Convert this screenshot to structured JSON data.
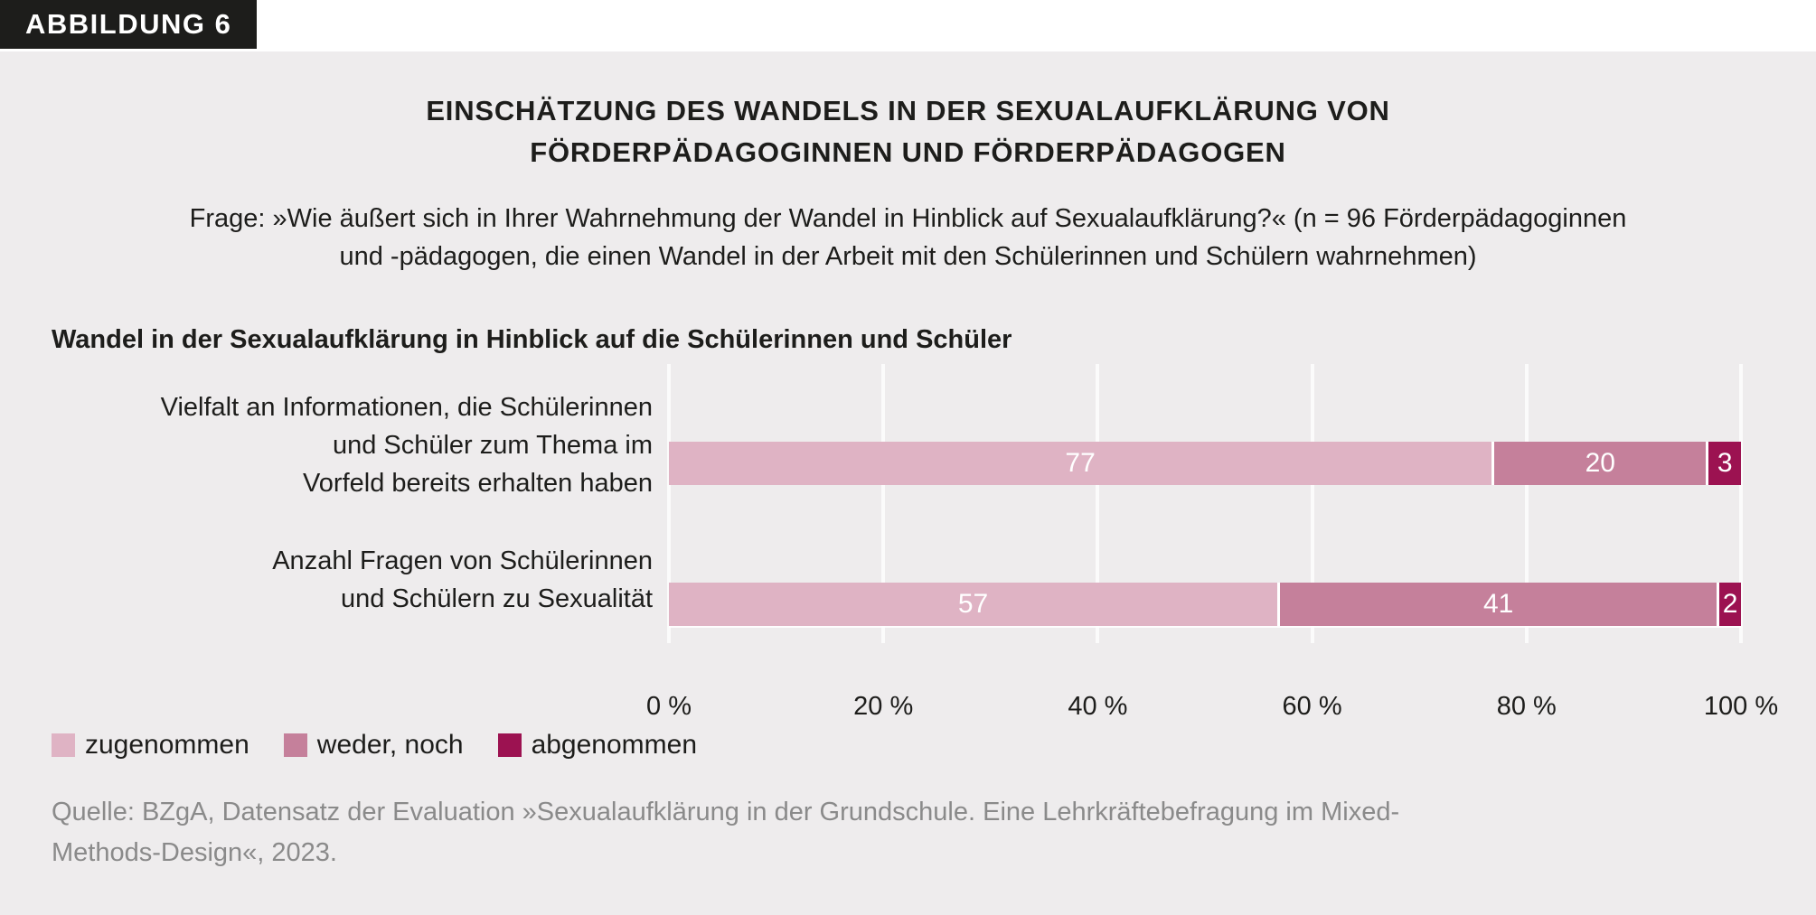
{
  "figure_label": "ABBILDUNG 6",
  "title": "EINSCHÄTZUNG DES WANDELS IN DER SEXUALAUFKLÄRUNG VON\nFÖRDERPÄDAGOGINNEN UND FÖRDERPÄDAGOGEN",
  "question": "Frage: »Wie äußert sich in Ihrer Wahrnehmung der Wandel in Hinblick auf Sexualaufklärung?« (n = 96 Förderpädagoginnen\nund -pädagogen, die einen Wandel in der Arbeit mit den Schülerinnen und Schülern wahrnehmen)",
  "section_heading": "Wandel in der Sexualaufklärung in Hinblick auf die Schülerinnen und Schüler",
  "source": "Quelle: BZgA, Datensatz der Evaluation »Sexualaufklärung in der Grundschule. Eine Lehrkräftebefragung im Mixed-\nMethods-Design«, 2023.",
  "colors": {
    "page_background": "#ffffff",
    "panel_background": "#eeeced",
    "badge_background": "#1d1d1b",
    "text": "#1d1d1b",
    "source_text": "#8a8a8a",
    "gridline": "#fbfbfb",
    "bar_value_text": "#ffffff"
  },
  "chart_data": {
    "type": "bar",
    "orientation": "horizontal",
    "stacked": true,
    "unit": "%",
    "categories": [
      "Vielfalt an Informationen, die Schülerinnen\nund Schüler zum Thema im\nVorfeld bereits erhalten haben",
      "Anzahl Fragen von Schülerinnen\nund Schülern zu Sexualität"
    ],
    "series": [
      {
        "name": "zugenommen",
        "color": "#dfb3c4",
        "values": [
          77,
          57
        ]
      },
      {
        "name": "weder, noch",
        "color": "#c5809b",
        "values": [
          20,
          41
        ]
      },
      {
        "name": "abgenommen",
        "color": "#9c1251",
        "values": [
          3,
          2
        ]
      }
    ],
    "x_ticks": [
      "0 %",
      "20 %",
      "40 %",
      "60 %",
      "80 %",
      "100 %"
    ],
    "xlim": [
      0,
      100
    ],
    "grid": "vertical",
    "legend_position": "bottom-left"
  }
}
